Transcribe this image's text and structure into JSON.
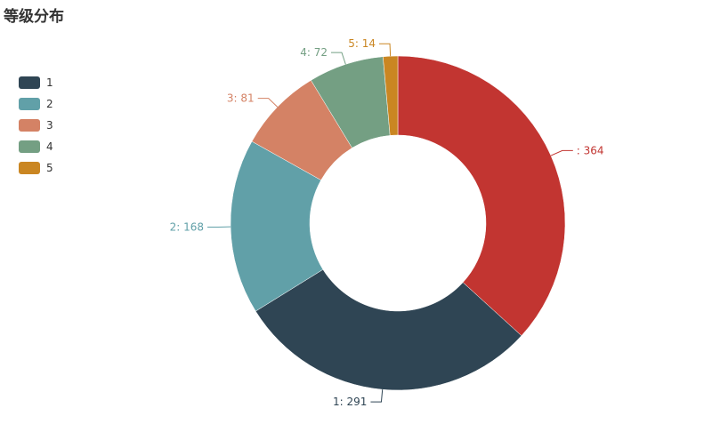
{
  "title": "等级分布",
  "chart_data": {
    "type": "pie",
    "donut": true,
    "legend_position": "left",
    "slices": [
      {
        "name": "",
        "value": 364,
        "label": ": 364",
        "color": "#c23531"
      },
      {
        "name": "1",
        "value": 291,
        "label": "1: 291",
        "color": "#2f4554"
      },
      {
        "name": "2",
        "value": 168,
        "label": "2: 168",
        "color": "#61a0a8"
      },
      {
        "name": "3",
        "value": 81,
        "label": "3: 81",
        "color": "#d48265"
      },
      {
        "name": "4",
        "value": 72,
        "label": "4: 72",
        "color": "#749f83"
      },
      {
        "name": "5",
        "value": 14,
        "label": "5: 14",
        "color": "#ca8622"
      }
    ]
  }
}
